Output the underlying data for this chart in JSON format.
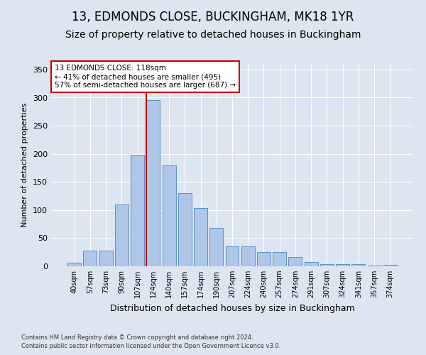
{
  "title": "13, EDMONDS CLOSE, BUCKINGHAM, MK18 1YR",
  "subtitle": "Size of property relative to detached houses in Buckingham",
  "xlabel": "Distribution of detached houses by size in Buckingham",
  "ylabel": "Number of detached properties",
  "categories": [
    "40sqm",
    "57sqm",
    "73sqm",
    "90sqm",
    "107sqm",
    "124sqm",
    "140sqm",
    "157sqm",
    "174sqm",
    "190sqm",
    "207sqm",
    "224sqm",
    "240sqm",
    "257sqm",
    "274sqm",
    "291sqm",
    "307sqm",
    "324sqm",
    "341sqm",
    "357sqm",
    "374sqm"
  ],
  "values": [
    6,
    28,
    28,
    110,
    198,
    295,
    180,
    130,
    103,
    68,
    36,
    36,
    25,
    25,
    16,
    7,
    4,
    4,
    4,
    1,
    2
  ],
  "bar_color": "#aec6e8",
  "bar_edge_color": "#5b8fc9",
  "vline_x": 4.575,
  "vline_color": "#cc0000",
  "annotation_text": "13 EDMONDS CLOSE: 118sqm\n← 41% of detached houses are smaller (495)\n57% of semi-detached houses are larger (687) →",
  "annotation_box_color": "#ffffff",
  "annotation_box_edge": "#cc0000",
  "footer1": "Contains HM Land Registry data © Crown copyright and database right 2024.",
  "footer2": "Contains public sector information licensed under the Open Government Licence v3.0.",
  "background_color": "#dde5f0",
  "plot_bg_color": "#dde5f0",
  "ylim": [
    0,
    360
  ],
  "yticks": [
    0,
    50,
    100,
    150,
    200,
    250,
    300,
    350
  ],
  "title_fontsize": 12,
  "subtitle_fontsize": 10,
  "xlabel_fontsize": 9,
  "ylabel_fontsize": 8
}
